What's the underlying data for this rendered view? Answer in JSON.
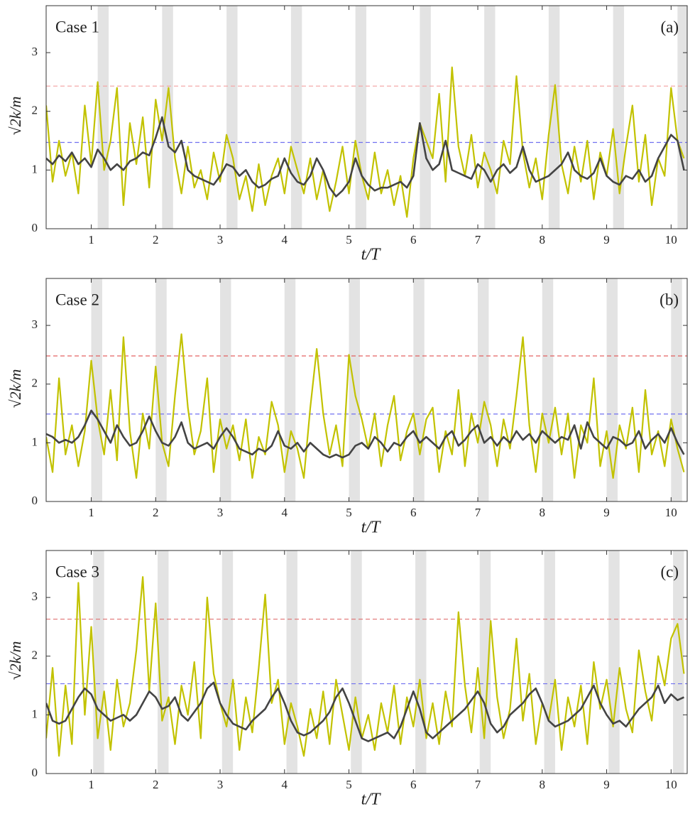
{
  "chart_data": [
    {
      "type": "line",
      "title": "Case 1",
      "annotation": "(a)",
      "xlabel": "t/T",
      "ylabel": "√2k/m",
      "xlim": [
        0.3,
        10.25
      ],
      "ylim": [
        0,
        3.8
      ],
      "xticks": [
        1,
        2,
        3,
        4,
        5,
        6,
        7,
        8,
        9,
        10
      ],
      "yticks": [
        0,
        1,
        2,
        3
      ],
      "shaded_regions": [
        [
          1.1,
          1.27
        ],
        [
          2.1,
          2.27
        ],
        [
          3.1,
          3.27
        ],
        [
          4.1,
          4.27
        ],
        [
          5.1,
          5.27
        ],
        [
          6.1,
          6.27
        ],
        [
          7.1,
          7.27
        ],
        [
          8.1,
          8.27
        ],
        [
          9.1,
          9.27
        ],
        [
          10.1,
          10.27
        ]
      ],
      "shaded_color": "#e3e3e3",
      "reference_lines": [
        {
          "value": 2.43,
          "color": "#f4a0a0"
        },
        {
          "value": 1.47,
          "color": "#7070f0"
        }
      ],
      "x": [
        0.3,
        0.4,
        0.5,
        0.6,
        0.7,
        0.8,
        0.9,
        1.0,
        1.1,
        1.2,
        1.3,
        1.4,
        1.5,
        1.6,
        1.7,
        1.8,
        1.9,
        2.0,
        2.1,
        2.2,
        2.3,
        2.4,
        2.5,
        2.6,
        2.7,
        2.8,
        2.9,
        3.0,
        3.1,
        3.2,
        3.3,
        3.4,
        3.5,
        3.6,
        3.7,
        3.8,
        3.9,
        4.0,
        4.1,
        4.2,
        4.3,
        4.4,
        4.5,
        4.6,
        4.7,
        4.8,
        4.9,
        5.0,
        5.1,
        5.2,
        5.3,
        5.4,
        5.5,
        5.6,
        5.7,
        5.8,
        5.9,
        6.0,
        6.1,
        6.2,
        6.3,
        6.4,
        6.5,
        6.6,
        6.7,
        6.8,
        6.9,
        7.0,
        7.1,
        7.2,
        7.3,
        7.4,
        7.5,
        7.6,
        7.7,
        7.8,
        7.9,
        8.0,
        8.1,
        8.2,
        8.3,
        8.4,
        8.5,
        8.6,
        8.7,
        8.8,
        8.9,
        9.0,
        9.1,
        9.2,
        9.3,
        9.4,
        9.5,
        9.6,
        9.7,
        9.8,
        9.9,
        10.0,
        10.1,
        10.2
      ],
      "series": [
        {
          "color": "#c2c200",
          "values": [
            2.1,
            0.8,
            1.5,
            0.9,
            1.3,
            0.6,
            2.1,
            1.1,
            2.5,
            1.0,
            1.5,
            2.4,
            0.4,
            1.8,
            1.1,
            1.9,
            0.7,
            2.2,
            1.5,
            2.4,
            1.2,
            0.6,
            1.4,
            0.7,
            1.0,
            0.5,
            1.3,
            0.8,
            1.6,
            1.2,
            0.5,
            0.9,
            0.3,
            1.1,
            0.4,
            0.9,
            1.2,
            0.6,
            1.4,
            1.0,
            0.6,
            1.2,
            0.5,
            1.0,
            0.3,
            0.8,
            1.4,
            0.6,
            1.5,
            0.9,
            0.5,
            1.3,
            0.6,
            1.0,
            0.4,
            0.9,
            0.2,
            1.2,
            1.8,
            1.5,
            1.2,
            2.3,
            0.8,
            2.75,
            1.4,
            0.9,
            1.6,
            0.7,
            1.3,
            1.0,
            0.6,
            1.5,
            1.1,
            2.6,
            1.3,
            0.7,
            1.2,
            0.5,
            1.6,
            2.45,
            1.1,
            0.6,
            1.4,
            0.8,
            1.5,
            0.5,
            1.3,
            0.9,
            1.7,
            0.6,
            1.4,
            2.1,
            0.8,
            1.6,
            0.4,
            1.2,
            0.9,
            2.4,
            1.5,
            1.2
          ]
        },
        {
          "color": "#444444",
          "values": [
            1.2,
            1.1,
            1.25,
            1.15,
            1.3,
            1.1,
            1.2,
            1.05,
            1.35,
            1.2,
            1.0,
            1.1,
            1.0,
            1.15,
            1.2,
            1.3,
            1.25,
            1.55,
            1.9,
            1.4,
            1.3,
            1.5,
            1.0,
            0.9,
            0.85,
            0.8,
            0.75,
            0.9,
            1.1,
            1.05,
            0.9,
            1.0,
            0.8,
            0.7,
            0.75,
            0.85,
            0.9,
            1.2,
            0.95,
            0.8,
            0.75,
            0.9,
            1.2,
            1.0,
            0.7,
            0.55,
            0.65,
            0.8,
            1.2,
            0.9,
            0.75,
            0.65,
            0.7,
            0.7,
            0.75,
            0.8,
            0.7,
            0.9,
            1.8,
            1.2,
            1.0,
            1.1,
            1.5,
            1.0,
            0.95,
            0.9,
            0.85,
            1.1,
            1.0,
            0.8,
            1.0,
            1.1,
            0.95,
            1.05,
            1.4,
            1.0,
            0.8,
            0.85,
            0.9,
            1.0,
            1.1,
            1.3,
            1.0,
            0.9,
            0.85,
            0.95,
            1.2,
            0.9,
            0.8,
            0.75,
            0.9,
            0.85,
            1.0,
            0.8,
            0.9,
            1.2,
            1.4,
            1.6,
            1.5,
            1.0
          ]
        }
      ]
    },
    {
      "type": "line",
      "title": "Case 2",
      "annotation": "(b)",
      "xlabel": "t/T",
      "ylabel": "√2k/m",
      "xlim": [
        0.3,
        10.25
      ],
      "ylim": [
        0,
        3.8
      ],
      "xticks": [
        1,
        2,
        3,
        4,
        5,
        6,
        7,
        8,
        9,
        10
      ],
      "yticks": [
        0,
        1,
        2,
        3
      ],
      "shaded_regions": [
        [
          1.0,
          1.17
        ],
        [
          2.0,
          2.17
        ],
        [
          3.0,
          3.17
        ],
        [
          4.0,
          4.17
        ],
        [
          5.0,
          5.17
        ],
        [
          6.0,
          6.17
        ],
        [
          7.0,
          7.17
        ],
        [
          8.0,
          8.17
        ],
        [
          9.0,
          9.17
        ],
        [
          10.0,
          10.17
        ]
      ],
      "shaded_color": "#e3e3e3",
      "reference_lines": [
        {
          "value": 2.48,
          "color": "#e05050"
        },
        {
          "value": 1.49,
          "color": "#7070f0"
        }
      ],
      "x": [
        0.3,
        0.4,
        0.5,
        0.6,
        0.7,
        0.8,
        0.9,
        1.0,
        1.1,
        1.2,
        1.3,
        1.4,
        1.5,
        1.6,
        1.7,
        1.8,
        1.9,
        2.0,
        2.1,
        2.2,
        2.3,
        2.4,
        2.5,
        2.6,
        2.7,
        2.8,
        2.9,
        3.0,
        3.1,
        3.2,
        3.3,
        3.4,
        3.5,
        3.6,
        3.7,
        3.8,
        3.9,
        4.0,
        4.1,
        4.2,
        4.3,
        4.4,
        4.5,
        4.6,
        4.7,
        4.8,
        4.9,
        5.0,
        5.1,
        5.2,
        5.3,
        5.4,
        5.5,
        5.6,
        5.7,
        5.8,
        5.9,
        6.0,
        6.1,
        6.2,
        6.3,
        6.4,
        6.5,
        6.6,
        6.7,
        6.8,
        6.9,
        7.0,
        7.1,
        7.2,
        7.3,
        7.4,
        7.5,
        7.6,
        7.7,
        7.8,
        7.9,
        8.0,
        8.1,
        8.2,
        8.3,
        8.4,
        8.5,
        8.6,
        8.7,
        8.8,
        8.9,
        9.0,
        9.1,
        9.2,
        9.3,
        9.4,
        9.5,
        9.6,
        9.7,
        9.8,
        9.9,
        10.0,
        10.1,
        10.2
      ],
      "series": [
        {
          "color": "#c2c200",
          "values": [
            1.1,
            0.5,
            2.1,
            0.8,
            1.3,
            0.6,
            1.2,
            2.4,
            1.4,
            0.8,
            1.9,
            0.7,
            2.8,
            1.2,
            0.4,
            1.5,
            0.9,
            2.3,
            1.0,
            0.6,
            1.8,
            2.85,
            1.6,
            0.8,
            1.2,
            2.1,
            0.5,
            1.4,
            0.9,
            1.3,
            0.7,
            1.4,
            0.4,
            1.1,
            0.8,
            1.7,
            1.3,
            0.5,
            1.2,
            0.9,
            0.4,
            1.6,
            2.6,
            1.5,
            0.8,
            1.3,
            0.6,
            2.5,
            1.8,
            1.4,
            0.9,
            1.5,
            0.6,
            1.3,
            1.8,
            0.7,
            1.2,
            1.5,
            0.8,
            1.4,
            1.6,
            0.5,
            1.2,
            0.8,
            1.9,
            0.6,
            1.5,
            1.0,
            1.7,
            1.3,
            0.6,
            1.4,
            0.9,
            1.8,
            2.8,
            1.3,
            0.5,
            1.5,
            1.0,
            1.6,
            0.8,
            1.5,
            0.4,
            1.3,
            1.0,
            2.1,
            0.6,
            1.2,
            0.4,
            1.3,
            0.9,
            1.6,
            0.5,
            1.9,
            0.8,
            1.2,
            0.6,
            1.4,
            0.9,
            0.5
          ]
        },
        {
          "color": "#444444",
          "values": [
            1.15,
            1.1,
            1.0,
            1.05,
            1.0,
            1.1,
            1.3,
            1.55,
            1.4,
            1.2,
            1.0,
            1.3,
            1.1,
            0.95,
            1.0,
            1.2,
            1.45,
            1.2,
            1.0,
            0.95,
            1.1,
            1.35,
            1.0,
            0.9,
            0.95,
            1.0,
            0.9,
            1.1,
            1.25,
            1.1,
            0.9,
            0.85,
            0.8,
            0.9,
            0.85,
            0.95,
            1.2,
            0.95,
            0.9,
            1.0,
            0.85,
            1.0,
            0.9,
            0.8,
            0.75,
            0.8,
            0.75,
            0.8,
            0.95,
            1.0,
            0.9,
            1.1,
            1.0,
            0.85,
            1.0,
            0.95,
            1.1,
            1.2,
            1.0,
            1.1,
            1.0,
            0.9,
            1.1,
            1.2,
            0.95,
            1.05,
            1.2,
            1.3,
            1.0,
            1.1,
            0.95,
            1.1,
            1.0,
            1.2,
            1.05,
            1.15,
            1.0,
            1.2,
            1.1,
            1.0,
            1.1,
            1.05,
            1.3,
            0.9,
            1.35,
            1.1,
            1.0,
            0.9,
            1.1,
            1.05,
            0.95,
            1.0,
            1.2,
            0.9,
            1.05,
            1.15,
            1.0,
            1.25,
            1.0,
            0.8
          ]
        }
      ]
    },
    {
      "type": "line",
      "title": "Case 3",
      "annotation": "(c)",
      "xlabel": "t/T",
      "ylabel": "√2k/m",
      "xlim": [
        0.3,
        10.25
      ],
      "ylim": [
        0,
        3.8
      ],
      "xticks": [
        1,
        2,
        3,
        4,
        5,
        6,
        7,
        8,
        9,
        10
      ],
      "yticks": [
        0,
        1,
        2,
        3
      ],
      "shaded_regions": [
        [
          1.03,
          1.2
        ],
        [
          2.03,
          2.2
        ],
        [
          3.03,
          3.2
        ],
        [
          4.03,
          4.2
        ],
        [
          5.03,
          5.2
        ],
        [
          6.03,
          6.2
        ],
        [
          7.03,
          7.2
        ],
        [
          8.03,
          8.2
        ],
        [
          9.03,
          9.2
        ],
        [
          10.03,
          10.2
        ]
      ],
      "shaded_color": "#e3e3e3",
      "reference_lines": [
        {
          "value": 2.63,
          "color": "#e07070"
        },
        {
          "value": 1.53,
          "color": "#7070f0"
        }
      ],
      "x": [
        0.3,
        0.4,
        0.5,
        0.6,
        0.7,
        0.8,
        0.9,
        1.0,
        1.1,
        1.2,
        1.3,
        1.4,
        1.5,
        1.6,
        1.7,
        1.8,
        1.9,
        2.0,
        2.1,
        2.2,
        2.3,
        2.4,
        2.5,
        2.6,
        2.7,
        2.8,
        2.9,
        3.0,
        3.1,
        3.2,
        3.3,
        3.4,
        3.5,
        3.6,
        3.7,
        3.8,
        3.9,
        4.0,
        4.1,
        4.2,
        4.3,
        4.4,
        4.5,
        4.6,
        4.7,
        4.8,
        4.9,
        5.0,
        5.1,
        5.2,
        5.3,
        5.4,
        5.5,
        5.6,
        5.7,
        5.8,
        5.9,
        6.0,
        6.1,
        6.2,
        6.3,
        6.4,
        6.5,
        6.6,
        6.7,
        6.8,
        6.9,
        7.0,
        7.1,
        7.2,
        7.3,
        7.4,
        7.5,
        7.6,
        7.7,
        7.8,
        7.9,
        8.0,
        8.1,
        8.2,
        8.3,
        8.4,
        8.5,
        8.6,
        8.7,
        8.8,
        8.9,
        9.0,
        9.1,
        9.2,
        9.3,
        9.4,
        9.5,
        9.6,
        9.7,
        9.8,
        9.9,
        10.0,
        10.1,
        10.2
      ],
      "series": [
        {
          "color": "#c2c200",
          "values": [
            0.6,
            1.8,
            0.3,
            1.5,
            0.5,
            3.25,
            1.0,
            2.5,
            0.6,
            1.4,
            0.4,
            1.6,
            0.8,
            1.2,
            2.1,
            3.35,
            1.4,
            2.9,
            0.9,
            1.3,
            0.5,
            1.5,
            1.0,
            1.9,
            0.6,
            3.0,
            1.7,
            1.2,
            0.8,
            1.6,
            0.4,
            1.3,
            0.7,
            1.8,
            3.05,
            1.2,
            1.6,
            0.5,
            1.2,
            0.8,
            0.3,
            1.1,
            0.6,
            1.4,
            0.5,
            1.6,
            1.0,
            0.4,
            1.3,
            0.6,
            1.0,
            0.4,
            1.2,
            0.7,
            1.5,
            0.5,
            1.3,
            0.8,
            1.6,
            0.6,
            1.2,
            0.5,
            1.4,
            0.8,
            2.75,
            1.5,
            0.7,
            1.8,
            0.6,
            2.6,
            1.3,
            0.6,
            1.1,
            2.3,
            0.9,
            1.7,
            0.5,
            1.2,
            0.9,
            1.6,
            0.4,
            1.3,
            0.8,
            1.5,
            0.5,
            1.9,
            1.1,
            1.6,
            0.8,
            1.8,
            1.1,
            0.7,
            2.1,
            1.4,
            0.9,
            2.0,
            1.5,
            2.3,
            2.55,
            1.7
          ]
        },
        {
          "color": "#444444",
          "values": [
            1.2,
            0.9,
            0.85,
            0.9,
            1.1,
            1.3,
            1.45,
            1.35,
            1.1,
            1.0,
            0.9,
            0.95,
            1.0,
            0.9,
            1.0,
            1.2,
            1.4,
            1.3,
            1.1,
            1.15,
            1.3,
            1.0,
            0.9,
            1.05,
            1.2,
            1.45,
            1.55,
            1.2,
            1.0,
            0.85,
            0.8,
            0.75,
            0.9,
            1.0,
            1.1,
            1.3,
            1.45,
            1.2,
            0.9,
            0.7,
            0.65,
            0.7,
            0.8,
            0.9,
            1.05,
            1.3,
            1.45,
            1.2,
            0.9,
            0.6,
            0.55,
            0.6,
            0.65,
            0.7,
            0.6,
            0.8,
            1.1,
            1.4,
            1.1,
            0.7,
            0.6,
            0.7,
            0.8,
            0.9,
            1.0,
            1.1,
            1.25,
            1.4,
            1.2,
            0.85,
            0.7,
            0.8,
            1.0,
            1.1,
            1.2,
            1.35,
            1.45,
            1.2,
            0.9,
            0.8,
            0.85,
            0.9,
            1.0,
            1.1,
            1.3,
            1.5,
            1.2,
            1.0,
            0.85,
            0.9,
            0.8,
            0.95,
            1.1,
            1.2,
            1.3,
            1.5,
            1.2,
            1.35,
            1.25,
            1.3
          ]
        }
      ]
    }
  ]
}
